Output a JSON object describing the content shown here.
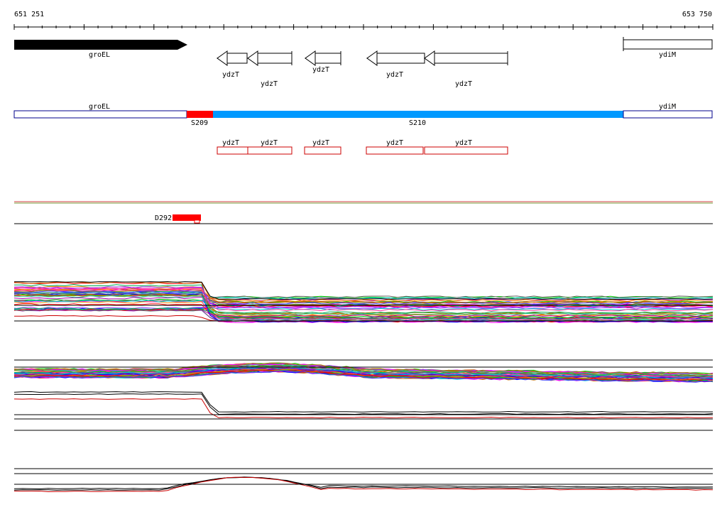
{
  "ruler": {
    "start_label": "651 251",
    "end_label": "653 750"
  },
  "genes_annotation": [
    {
      "name": "groEL",
      "direction": "forward",
      "style": "filled"
    },
    {
      "name": "ydzT",
      "direction": "reverse",
      "style": "outline"
    },
    {
      "name": "ydzT",
      "direction": "reverse",
      "style": "outline"
    },
    {
      "name": "ydzT",
      "direction": "reverse",
      "style": "outline"
    },
    {
      "name": "ydzT",
      "direction": "reverse",
      "style": "outline"
    },
    {
      "name": "ydzT",
      "direction": "reverse",
      "style": "outline"
    },
    {
      "name": "ydiM",
      "direction": "forward",
      "style": "box"
    }
  ],
  "segments": [
    {
      "name": "groEL",
      "color": "#ffffff"
    },
    {
      "name": "S209",
      "color": "#ff0000"
    },
    {
      "name": "S210",
      "color": "#0099ff"
    },
    {
      "name": "ydiM",
      "color": "#ffffff"
    }
  ],
  "transcript_boxes": [
    "ydzT",
    "ydzT",
    "ydzT",
    "ydzT",
    "ydzT"
  ],
  "marker": {
    "name": "D292",
    "color": "#ff0000"
  },
  "colors": {
    "outline_blue": "#00008b",
    "transcript_red": "#cc0000",
    "blue_segment": "#0099ff",
    "red_segment": "#ff0000"
  }
}
